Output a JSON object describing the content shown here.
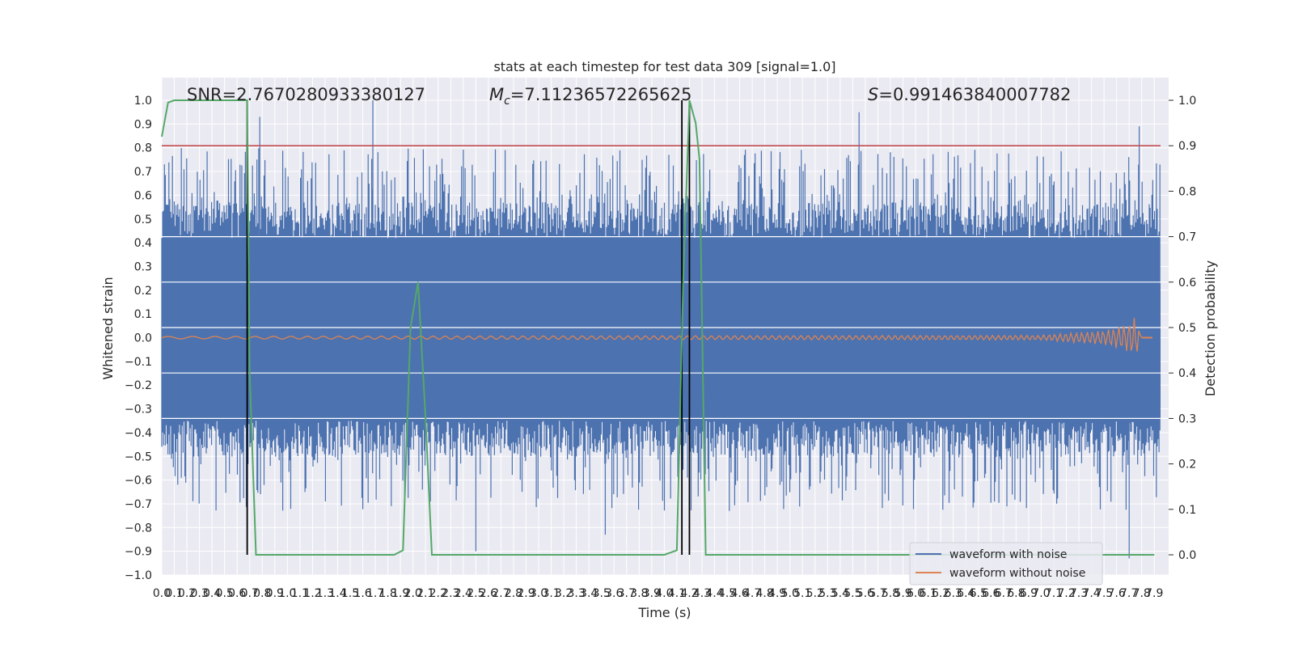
{
  "chart_data": {
    "type": "line",
    "title": "stats at each timestep for test data 309 [signal=1.0]",
    "xlabel": "Time (s)",
    "ylabel": "Whitened strain",
    "ylabel_right": "Detection probability",
    "xlim": [
      0,
      7.95
    ],
    "ylim": [
      -1.0,
      1.0
    ],
    "ylim_right": [
      0.0,
      1.0
    ],
    "grid": true,
    "legend_position": "lower-right",
    "annotations": {
      "snr": "SNR=2.7670280933380127",
      "mc": "=7.11236572265625",
      "mc_symbol": "M",
      "mc_subscript": "c",
      "s": "=0.991463840007782",
      "s_symbol": "S"
    },
    "x_ticks": [
      "0.0",
      "0.1",
      "0.2",
      "0.3",
      "0.4",
      "0.5",
      "0.6",
      "0.7",
      "0.8",
      "0.9",
      "1.0",
      "1.1",
      "1.2",
      "1.3",
      "1.4",
      "1.5",
      "1.6",
      "1.7",
      "1.8",
      "1.9",
      "2.0",
      "2.1",
      "2.2",
      "2.3",
      "2.4",
      "2.5",
      "2.6",
      "2.7",
      "2.8",
      "2.9",
      "3.0",
      "3.1",
      "3.2",
      "3.3",
      "3.4",
      "3.5",
      "3.6",
      "3.7",
      "3.8",
      "3.9",
      "4.0",
      "4.1",
      "4.2",
      "4.3",
      "4.4",
      "4.5",
      "4.6",
      "4.7",
      "4.8",
      "4.9",
      "5.0",
      "5.1",
      "5.2",
      "5.3",
      "5.4",
      "5.5",
      "5.6",
      "5.7",
      "5.8",
      "5.9",
      "6.0",
      "6.1",
      "6.2",
      "6.3",
      "6.4",
      "6.5",
      "6.6",
      "6.7",
      "6.8",
      "6.9",
      "7.0",
      "7.1",
      "7.2",
      "7.3",
      "7.4",
      "7.5",
      "7.6",
      "7.7",
      "7.8",
      "7.9"
    ],
    "y_ticks": [
      "1.0",
      "0.9",
      "0.8",
      "0.7",
      "0.6",
      "0.5",
      "0.4",
      "0.3",
      "0.2",
      "0.1",
      "0.0",
      "−0.1",
      "−0.2",
      "−0.3",
      "−0.4",
      "−0.5",
      "−0.6",
      "−0.7",
      "−0.8",
      "−0.9",
      "−1.0"
    ],
    "y_ticks_right": [
      "1.0",
      "0.9",
      "0.8",
      "0.7",
      "0.6",
      "0.5",
      "0.4",
      "0.3",
      "0.2",
      "0.1",
      "0.0"
    ],
    "threshold": {
      "axis": "right",
      "value": 0.9
    },
    "vertical_markers_s": [
      0.68,
      4.14,
      4.2
    ],
    "series": [
      {
        "name": "waveform with noise",
        "color": "#4c72b0",
        "axis": "left",
        "description_band": [
          -0.35,
          0.42
        ],
        "spike_peaks": [
          1.0,
          0.93,
          0.95,
          0.89,
          -0.9,
          -0.83,
          -0.93
        ]
      },
      {
        "name": "waveform without noise",
        "color": "#dd8452",
        "axis": "left",
        "x": [
          0.0,
          7.0,
          7.5,
          7.7,
          7.75,
          7.8
        ],
        "envelope": [
          0.005,
          0.01,
          0.03,
          0.06,
          0.09,
          0.0
        ]
      },
      {
        "color": "#55a868",
        "axis": "right",
        "x": [
          0.0,
          0.05,
          0.1,
          0.2,
          0.3,
          0.4,
          0.5,
          0.6,
          0.68,
          0.7,
          0.75,
          1.0,
          1.5,
          1.85,
          1.92,
          1.98,
          2.04,
          2.1,
          2.15,
          2.5,
          3.0,
          3.5,
          4.0,
          4.1,
          4.15,
          4.2,
          4.25,
          4.28,
          4.33,
          4.5,
          5.0,
          6.0,
          7.0,
          7.9
        ],
        "y": [
          0.92,
          0.995,
          1.0,
          1.0,
          1.0,
          1.0,
          1.0,
          1.0,
          1.0,
          0.4,
          0.0,
          0.0,
          0.0,
          0.0,
          0.01,
          0.5,
          0.6,
          0.3,
          0.0,
          0.0,
          0.0,
          0.0,
          0.0,
          0.01,
          0.6,
          1.0,
          0.95,
          0.87,
          0.0,
          0.0,
          0.0,
          0.0,
          0.0,
          0.0
        ]
      }
    ]
  }
}
